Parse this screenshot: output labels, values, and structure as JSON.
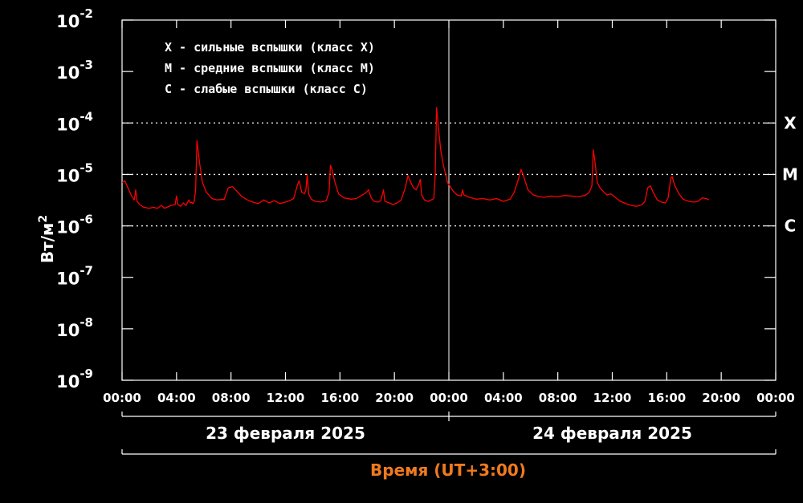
{
  "chart_data": {
    "type": "line",
    "ylabel": "Вт/м",
    "ylabel_exp": "2",
    "y_scale": "log",
    "ylim": [
      1e-09,
      0.01
    ],
    "y_ticks": [
      {
        "base": "10",
        "exp": "-2"
      },
      {
        "base": "10",
        "exp": "-3"
      },
      {
        "base": "10",
        "exp": "-4"
      },
      {
        "base": "10",
        "exp": "-5"
      },
      {
        "base": "10",
        "exp": "-6"
      },
      {
        "base": "10",
        "exp": "-7"
      },
      {
        "base": "10",
        "exp": "-8"
      },
      {
        "base": "10",
        "exp": "-9"
      }
    ],
    "x_tick_labels": [
      "00:00",
      "04:00",
      "08:00",
      "12:00",
      "16:00",
      "20:00",
      "00:00",
      "04:00",
      "08:00",
      "12:00",
      "16:00",
      "20:00",
      "00:00"
    ],
    "xlim_hours": [
      0,
      48
    ],
    "xlabel": "Время (UT+3:00)",
    "xlabel_color": "#f07a1e",
    "dates": [
      "23 февраля 2025",
      "24 февраля 2025"
    ],
    "day_boundary_hour": 24,
    "class_thresholds": [
      {
        "label": "X",
        "value": 0.0001
      },
      {
        "label": "M",
        "value": 1e-05
      },
      {
        "label": "C",
        "value": 1e-06
      }
    ],
    "legend": [
      "X - сильные вспышки (класс X)",
      "M - средние вспышки (класс M)",
      "C - слабые вспышки (класс C)"
    ],
    "grid": false,
    "series": [
      {
        "color": "#ff0000",
        "points": [
          [
            0.0,
            7e-06
          ],
          [
            0.2,
            7.5e-06
          ],
          [
            0.5,
            5e-06
          ],
          [
            0.7,
            3.8e-06
          ],
          [
            0.9,
            3.2e-06
          ],
          [
            1.0,
            5e-06
          ],
          [
            1.1,
            3e-06
          ],
          [
            1.3,
            2.6e-06
          ],
          [
            1.6,
            2.3e-06
          ],
          [
            2.0,
            2.2e-06
          ],
          [
            2.3,
            2.3e-06
          ],
          [
            2.6,
            2.2e-06
          ],
          [
            2.9,
            2.5e-06
          ],
          [
            3.1,
            2.2e-06
          ],
          [
            3.3,
            2.3e-06
          ],
          [
            3.6,
            2.5e-06
          ],
          [
            3.9,
            2.6e-06
          ],
          [
            4.0,
            3.8e-06
          ],
          [
            4.1,
            2.6e-06
          ],
          [
            4.3,
            2.4e-06
          ],
          [
            4.5,
            2.8e-06
          ],
          [
            4.7,
            2.5e-06
          ],
          [
            4.9,
            3.2e-06
          ],
          [
            5.0,
            2.8e-06
          ],
          [
            5.1,
            2.9e-06
          ],
          [
            5.2,
            2.7e-06
          ],
          [
            5.3,
            3e-06
          ],
          [
            5.4,
            5e-06
          ],
          [
            5.5,
            4.5e-05
          ],
          [
            5.7,
            1.6e-05
          ],
          [
            5.9,
            7e-06
          ],
          [
            6.2,
            4.5e-06
          ],
          [
            6.6,
            3.4e-06
          ],
          [
            7.0,
            3.2e-06
          ],
          [
            7.5,
            3.3e-06
          ],
          [
            7.8,
            5.5e-06
          ],
          [
            8.1,
            5.8e-06
          ],
          [
            8.4,
            4.8e-06
          ],
          [
            8.8,
            3.7e-06
          ],
          [
            9.2,
            3.2e-06
          ],
          [
            9.6,
            2.9e-06
          ],
          [
            10.0,
            2.7e-06
          ],
          [
            10.4,
            3.2e-06
          ],
          [
            10.8,
            2.8e-06
          ],
          [
            11.2,
            3.1e-06
          ],
          [
            11.6,
            2.7e-06
          ],
          [
            12.0,
            2.9e-06
          ],
          [
            12.3,
            3.1e-06
          ],
          [
            12.6,
            3.4e-06
          ],
          [
            12.9,
            6.5e-06
          ],
          [
            13.0,
            7.5e-06
          ],
          [
            13.2,
            4.5e-06
          ],
          [
            13.4,
            4.2e-06
          ],
          [
            13.5,
            5e-06
          ],
          [
            13.6,
            1e-05
          ],
          [
            13.7,
            4.2e-06
          ],
          [
            13.9,
            3.3e-06
          ],
          [
            14.2,
            3e-06
          ],
          [
            14.6,
            2.9e-06
          ],
          [
            15.0,
            3.1e-06
          ],
          [
            15.2,
            4.5e-06
          ],
          [
            15.3,
            1.5e-05
          ],
          [
            15.4,
            1.3e-05
          ],
          [
            15.6,
            7.5e-06
          ],
          [
            15.9,
            4.2e-06
          ],
          [
            16.3,
            3.5e-06
          ],
          [
            16.8,
            3.3e-06
          ],
          [
            17.2,
            3.4e-06
          ],
          [
            17.5,
            3.8e-06
          ],
          [
            17.9,
            4.4e-06
          ],
          [
            18.1,
            5e-06
          ],
          [
            18.3,
            3.5e-06
          ],
          [
            18.5,
            3e-06
          ],
          [
            18.8,
            2.9e-06
          ],
          [
            19.0,
            3.1e-06
          ],
          [
            19.2,
            5e-06
          ],
          [
            19.3,
            3e-06
          ],
          [
            19.6,
            2.8e-06
          ],
          [
            19.9,
            2.6e-06
          ],
          [
            20.2,
            2.8e-06
          ],
          [
            20.5,
            3.2e-06
          ],
          [
            20.8,
            5.5e-06
          ],
          [
            21.0,
            9.5e-06
          ],
          [
            21.2,
            7e-06
          ],
          [
            21.4,
            5.5e-06
          ],
          [
            21.6,
            5e-06
          ],
          [
            21.8,
            6.5e-06
          ],
          [
            21.9,
            8e-06
          ],
          [
            22.0,
            4e-06
          ],
          [
            22.2,
            3.2e-06
          ],
          [
            22.5,
            3e-06
          ],
          [
            22.7,
            3.2e-06
          ],
          [
            22.9,
            3.4e-06
          ],
          [
            23.0,
            1e-05
          ],
          [
            23.1,
            0.0002
          ],
          [
            23.2,
            0.0001
          ],
          [
            23.4,
            3e-05
          ],
          [
            23.6,
            1.5e-05
          ],
          [
            23.9,
            7e-06
          ],
          [
            24.3,
            4.8e-06
          ],
          [
            24.6,
            4e-06
          ],
          [
            24.9,
            3.8e-06
          ],
          [
            25.0,
            5e-06
          ],
          [
            25.1,
            4e-06
          ],
          [
            25.5,
            3.6e-06
          ],
          [
            26.0,
            3.3e-06
          ],
          [
            26.5,
            3.4e-06
          ],
          [
            27.0,
            3.2e-06
          ],
          [
            27.5,
            3.4e-06
          ],
          [
            28.0,
            3e-06
          ],
          [
            28.5,
            3.3e-06
          ],
          [
            28.8,
            4.5e-06
          ],
          [
            29.1,
            8e-06
          ],
          [
            29.3,
            1.25e-05
          ],
          [
            29.5,
            9e-06
          ],
          [
            29.8,
            5e-06
          ],
          [
            30.2,
            4e-06
          ],
          [
            30.6,
            3.7e-06
          ],
          [
            31.0,
            3.6e-06
          ],
          [
            31.5,
            3.8e-06
          ],
          [
            32.0,
            3.7e-06
          ],
          [
            32.5,
            3.9e-06
          ],
          [
            33.0,
            3.8e-06
          ],
          [
            33.5,
            3.7e-06
          ],
          [
            34.0,
            3.9e-06
          ],
          [
            34.3,
            4.5e-06
          ],
          [
            34.5,
            6e-06
          ],
          [
            34.6,
            3e-05
          ],
          [
            34.7,
            2e-05
          ],
          [
            34.9,
            7e-06
          ],
          [
            35.1,
            5.5e-06
          ],
          [
            35.3,
            4.8e-06
          ],
          [
            35.6,
            4e-06
          ],
          [
            35.9,
            4.2e-06
          ],
          [
            36.2,
            3.6e-06
          ],
          [
            36.6,
            3e-06
          ],
          [
            37.0,
            2.7e-06
          ],
          [
            37.4,
            2.5e-06
          ],
          [
            37.8,
            2.4e-06
          ],
          [
            38.2,
            2.6e-06
          ],
          [
            38.4,
            3e-06
          ],
          [
            38.6,
            5.5e-06
          ],
          [
            38.8,
            6e-06
          ],
          [
            39.0,
            4.5e-06
          ],
          [
            39.3,
            3.2e-06
          ],
          [
            39.6,
            2.9e-06
          ],
          [
            39.9,
            2.8e-06
          ],
          [
            40.1,
            3.5e-06
          ],
          [
            40.3,
            8.5e-06
          ],
          [
            40.4,
            9e-06
          ],
          [
            40.6,
            6e-06
          ],
          [
            40.9,
            4.2e-06
          ],
          [
            41.2,
            3.3e-06
          ],
          [
            41.6,
            3e-06
          ],
          [
            42.0,
            2.9e-06
          ],
          [
            42.3,
            3e-06
          ],
          [
            42.6,
            3.5e-06
          ],
          [
            42.9,
            3.4e-06
          ],
          [
            43.1,
            3.2e-06
          ]
        ]
      }
    ]
  }
}
